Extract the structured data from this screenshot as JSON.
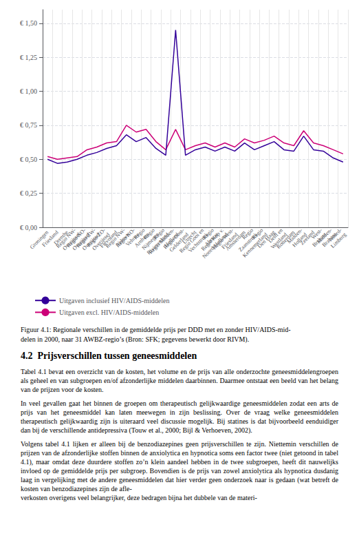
{
  "chart_data": {
    "type": "line",
    "categories": [
      "Groningen",
      "Friesland",
      "Drenthe",
      "Regio NW-\nOverijssel",
      "Regio NO-\nOverijssel",
      "Regio ZW-\nOverijssel",
      "Regio ZO-\nOverijssel",
      "Flevoland",
      "Regio NW-\nVeluwe",
      "Regio NO-\nVeluwe",
      "Regio\nArnhem",
      "Regio\nNijmegen",
      "Regio\nRivierenland",
      "Regio Midden-\nHolland",
      "Regio Oost-\nGelderland",
      "Utrecht",
      "Regio Gooi en\nVechtstreek",
      "Regio\nAlmaar",
      "Regio Kop v.\nNoord-Holland",
      "Regio West-\nFriesland",
      "Amsterdam",
      "Regio\nZaanstreek",
      "Regio\nKennemerland",
      "Den Haag",
      "Delft en\nWestland",
      "Rotterdam",
      "Midden-\nHolland",
      "Zeeland",
      "West-\nBrabant",
      "Midden-\nBrabant",
      "Noord-\nLimburg"
    ],
    "series": [
      {
        "name": "Uitgaven excl. HIV/AIDS-middelen",
        "color": "#cc0077",
        "values": [
          0.52,
          0.5,
          0.51,
          0.52,
          0.57,
          0.59,
          0.62,
          0.63,
          0.75,
          0.7,
          0.72,
          0.63,
          0.57,
          0.72,
          0.57,
          0.6,
          0.62,
          0.59,
          0.62,
          0.59,
          0.65,
          0.62,
          0.64,
          0.67,
          0.62,
          0.6,
          0.71,
          0.62,
          0.6,
          0.57,
          0.54
        ]
      },
      {
        "name": "Uitgaven inclusief HIV/AIDS-middelen",
        "color": "#330099",
        "values": [
          0.5,
          0.47,
          0.48,
          0.5,
          0.53,
          0.55,
          0.58,
          0.6,
          0.68,
          0.63,
          0.66,
          0.58,
          0.53,
          1.45,
          0.53,
          0.57,
          0.59,
          0.56,
          0.59,
          0.56,
          0.62,
          0.57,
          0.6,
          0.63,
          0.57,
          0.56,
          0.67,
          0.57,
          0.56,
          0.51,
          0.48
        ]
      }
    ],
    "ylim": [
      0.0,
      1.6
    ],
    "yticks": [
      {
        "value": 0.0,
        "label": "€ 0,00"
      },
      {
        "value": 0.25,
        "label": "€ 0,25"
      },
      {
        "value": 0.5,
        "label": "€ 0,50"
      },
      {
        "value": 0.75,
        "label": "€ 0,75"
      },
      {
        "value": 1.0,
        "label": "€ 1,00"
      },
      {
        "value": 1.25,
        "label": "€ 1,25"
      },
      {
        "value": 1.5,
        "label": "€ 1,50"
      }
    ],
    "grid": true,
    "legend": "bottom",
    "caption": "Figuur 4.1: Regionale verschillen in de gemiddelde prijs per DDD met en zonder HIV/AIDS-mid-\ndelen in 2000, naar 31 AWBZ-regio’s (Bron: SFK; gegevens bewerkt door RIVM).",
    "annotations": [
      "4.2  Prijsverschillen tussen geneesmiddelen",
      "Tabel 4.1 bevat een overzicht van de kosten, het volume en de prijs van alle onderzochte geneesmiddelengroepen als geheel en van subgroepen en/of afzonderlijke middelen daarbinnen. Daarmee ontstaat een beeld van het belang van de prijzen voor de kosten.",
      "In veel gevallen gaat het binnen de groepen om therapeutisch gelijkwaardige geneesmiddelen zodat een arts de prijs van het geneesmiddel kan laten meewegen in zijn beslissing. Over de vraag welke geneesmiddelen therapeutisch gelijkwaardig zijn is uiteraard veel discussie mogelijk. Bij statines is dat bijvoorbeeld eenduidiger dan bij de verschillende antidepressiva (Touw et al., 2000; Bijl & Verhoeven, 2002).",
      "Volgens tabel 4.1 lijken er alleen bij de benzodiazepines geen prijsverschillen te zijn. Niettemin verschillen de prijzen van de afzonderlijke stoffen binnen de anxiolytica en hypnotica soms een factor twee (niet getoond in tabel 4.1), maar omdat deze duurdere stoffen zo’n klein aandeel hebben in de twee subgroepen, heeft dit nauwelijks invloed op de gemiddelde prijs per subgroep. Bovendien is de prijs van zowel anxiolytica als hypnotica dusdanig laag in vergelijking met de andere geneesmiddelen dat hier verder geen onderzoek naar is gedaan (wat betreft de kosten van benzodiazepines zijn de afle-\nverkosten overigens veel belangrijker, deze bedragen bijna het dubbele van de materi-"
    ]
  }
}
